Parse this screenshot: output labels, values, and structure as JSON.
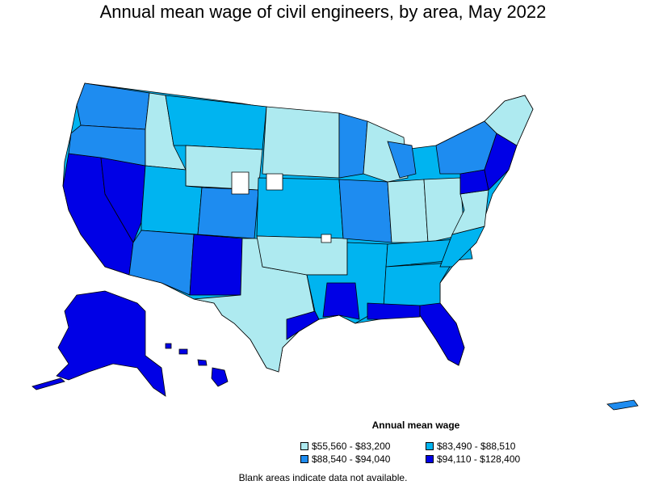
{
  "title": "Annual mean wage of civil engineers, by area, May 2022",
  "legend": {
    "title": "Annual mean wage",
    "items": [
      {
        "label": "$55,560 - $83,200",
        "color": "#aeeaf0"
      },
      {
        "label": "$88,540 - $94,040",
        "color": "#1e8cf0"
      },
      {
        "label": "$83,490 - $88,510",
        "color": "#00b4f0"
      },
      {
        "label": "$94,110 - $128,400",
        "color": "#0000e6"
      }
    ]
  },
  "footnote": "Blank areas indicate data not available.",
  "colors": {
    "low": "#aeeaf0",
    "mid_low": "#00b4f0",
    "mid_high": "#1e8cf0",
    "high": "#0000e6",
    "blank": "#ffffff"
  }
}
